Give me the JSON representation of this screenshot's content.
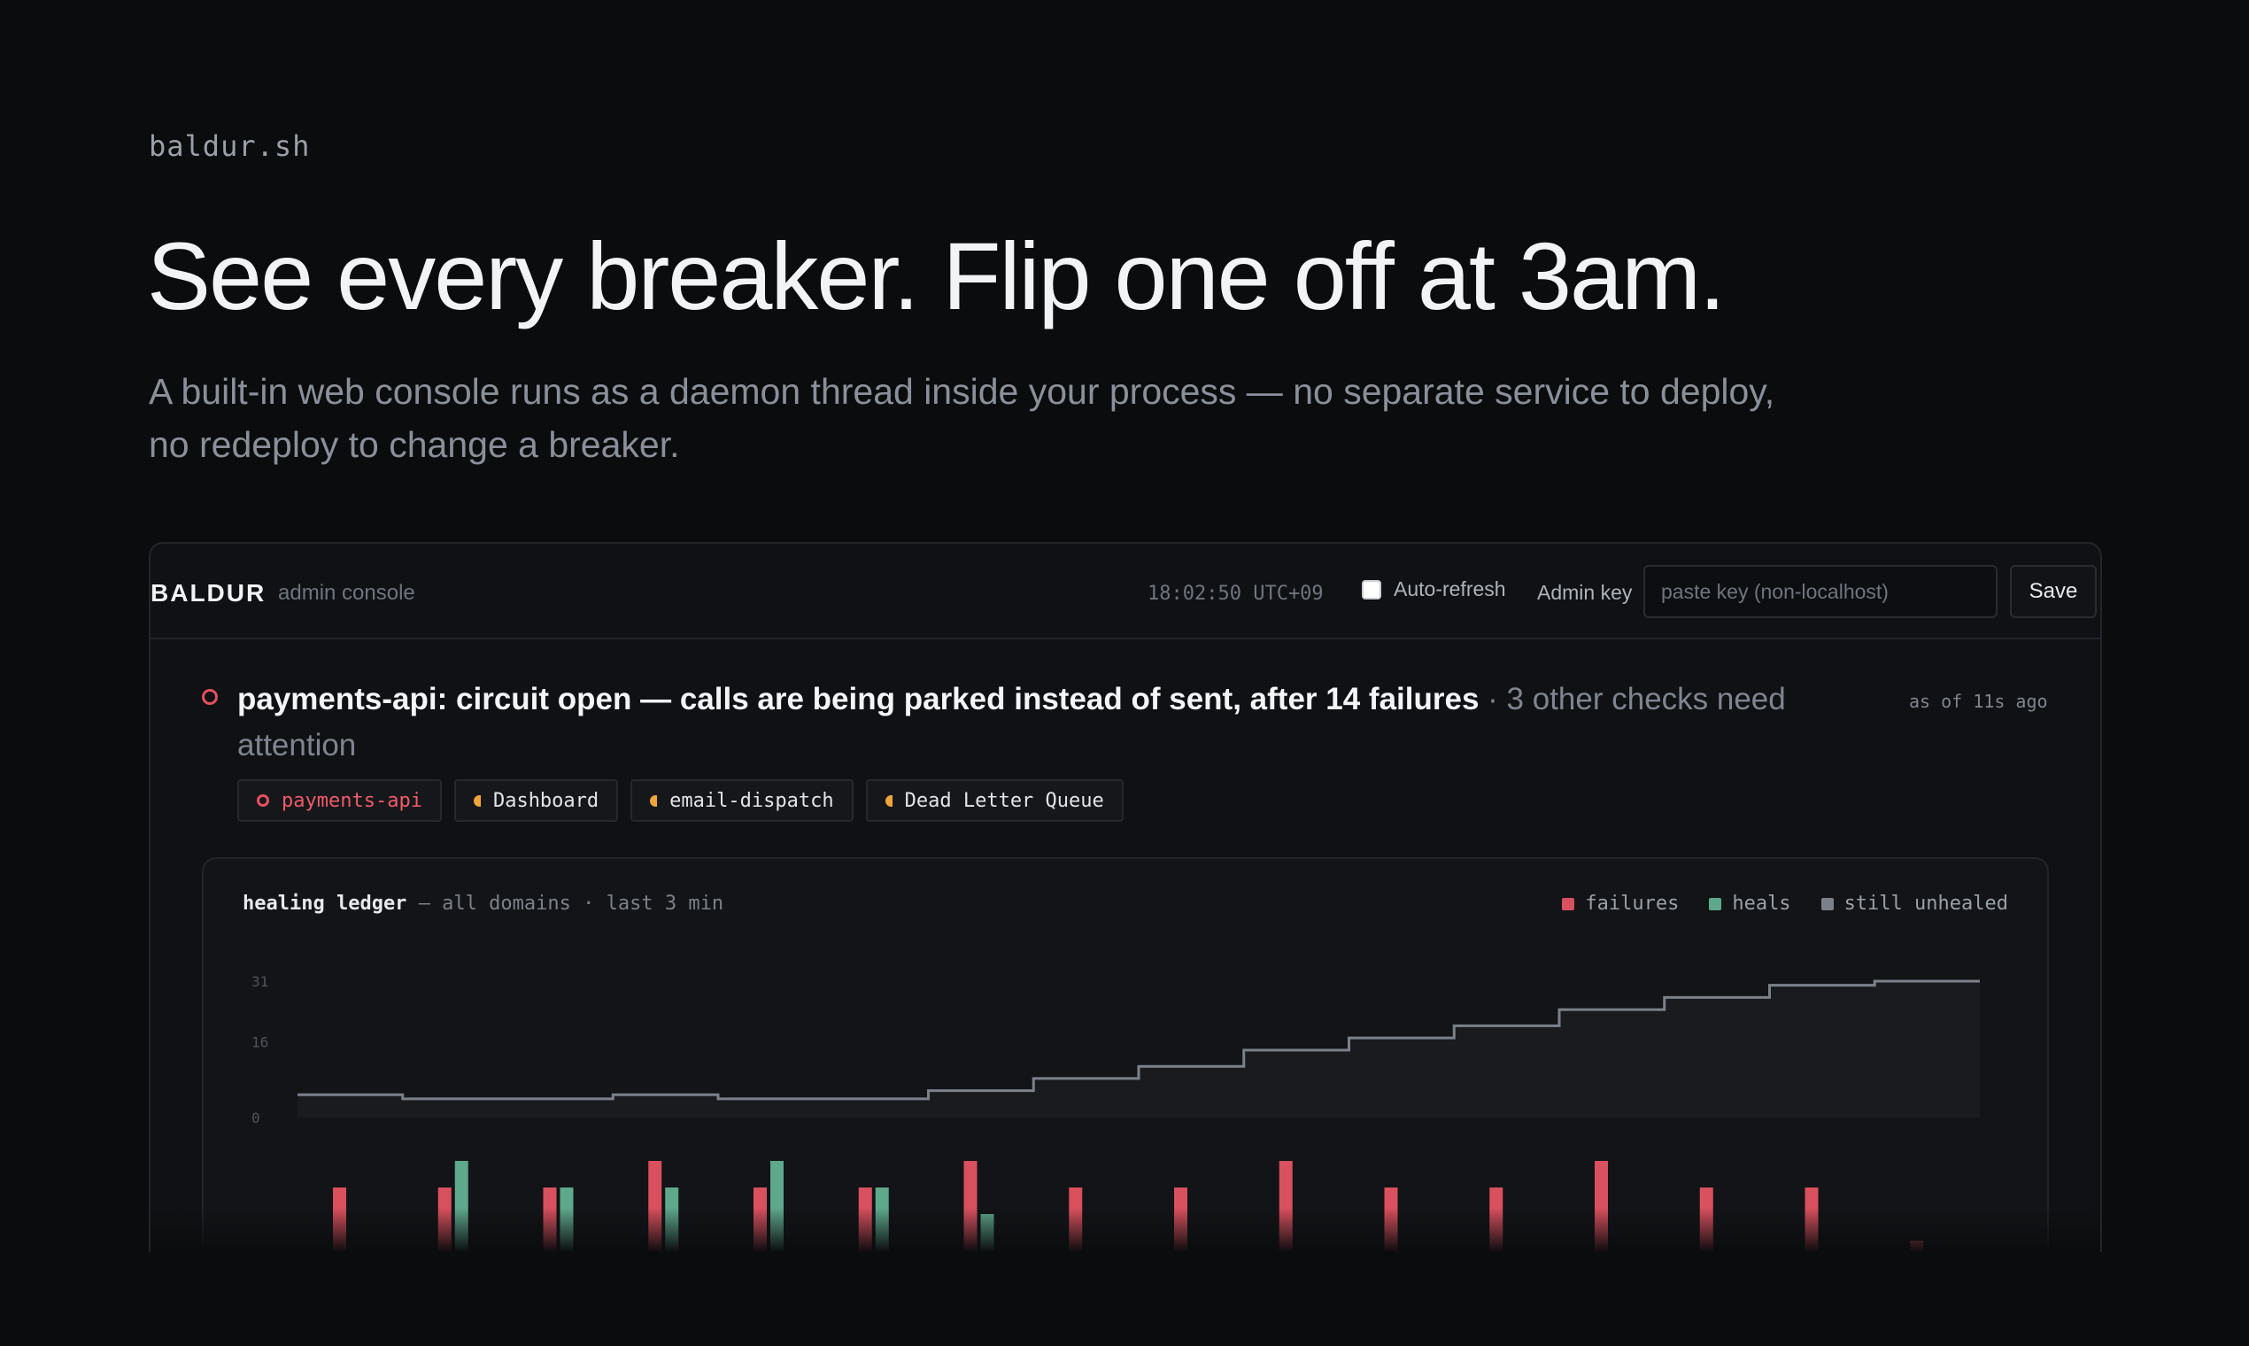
{
  "site": {
    "brand": "baldur.sh"
  },
  "hero": {
    "headline": "See every breaker. Flip one off at 3am.",
    "subhead": "A built-in web console runs as a daemon thread inside your process — no separate service to deploy, no redeploy to change a breaker."
  },
  "console": {
    "logo": "BALDUR",
    "subtitle": "admin console",
    "clock": "18:02:50 UTC+09",
    "auto_refresh_label": "Auto-refresh",
    "auto_refresh_checked": false,
    "admin_key_label": "Admin key",
    "admin_key_placeholder": "paste key (non-localhost)",
    "save_label": "Save",
    "alert": {
      "service": "payments-api",
      "colon": ":",
      "message": "circuit open — calls are being parked instead of sent",
      "comma": ",",
      "detail": "after 14 failures",
      "other": "· 3 other checks need attention",
      "as_of": "as of 11s ago"
    },
    "chips": [
      {
        "label": "payments-api",
        "state": "open"
      },
      {
        "label": "Dashboard",
        "state": "degraded"
      },
      {
        "label": "email-dispatch",
        "state": "degraded"
      },
      {
        "label": "Dead Letter Queue",
        "state": "degraded"
      }
    ],
    "ledger": {
      "title": "healing ledger",
      "subtitle": "— all domains · last 3 min",
      "legend": [
        {
          "label": "failures",
          "color": "#d9505e"
        },
        {
          "label": "heals",
          "color": "#5ea88c"
        },
        {
          "label": "still unhealed",
          "color": "#7b818b"
        }
      ]
    }
  },
  "chart_data": {
    "type": "bar",
    "title": "healing ledger",
    "subtitle": "all domains · last 3 min",
    "line_series": {
      "name": "still unhealed",
      "type": "step",
      "values": [
        3,
        2,
        2,
        3,
        2,
        2,
        4,
        7,
        10,
        14,
        17,
        20,
        24,
        27,
        30,
        31,
        31
      ]
    },
    "y_ticks": [
      0,
      16,
      31
    ],
    "ylim": [
      0,
      31
    ],
    "series": [
      {
        "name": "failures",
        "color": "#d9505e",
        "values": [
          5,
          5,
          5,
          7,
          5,
          5,
          7,
          5,
          5,
          7,
          5,
          5,
          7,
          5,
          5,
          1
        ]
      },
      {
        "name": "heals",
        "color": "#5ea88c",
        "values": [
          0,
          7,
          5,
          5,
          7,
          5,
          3,
          0,
          0,
          0,
          0,
          0,
          0,
          0,
          0,
          0
        ]
      }
    ],
    "grid": false,
    "legend_position": "top-right"
  }
}
